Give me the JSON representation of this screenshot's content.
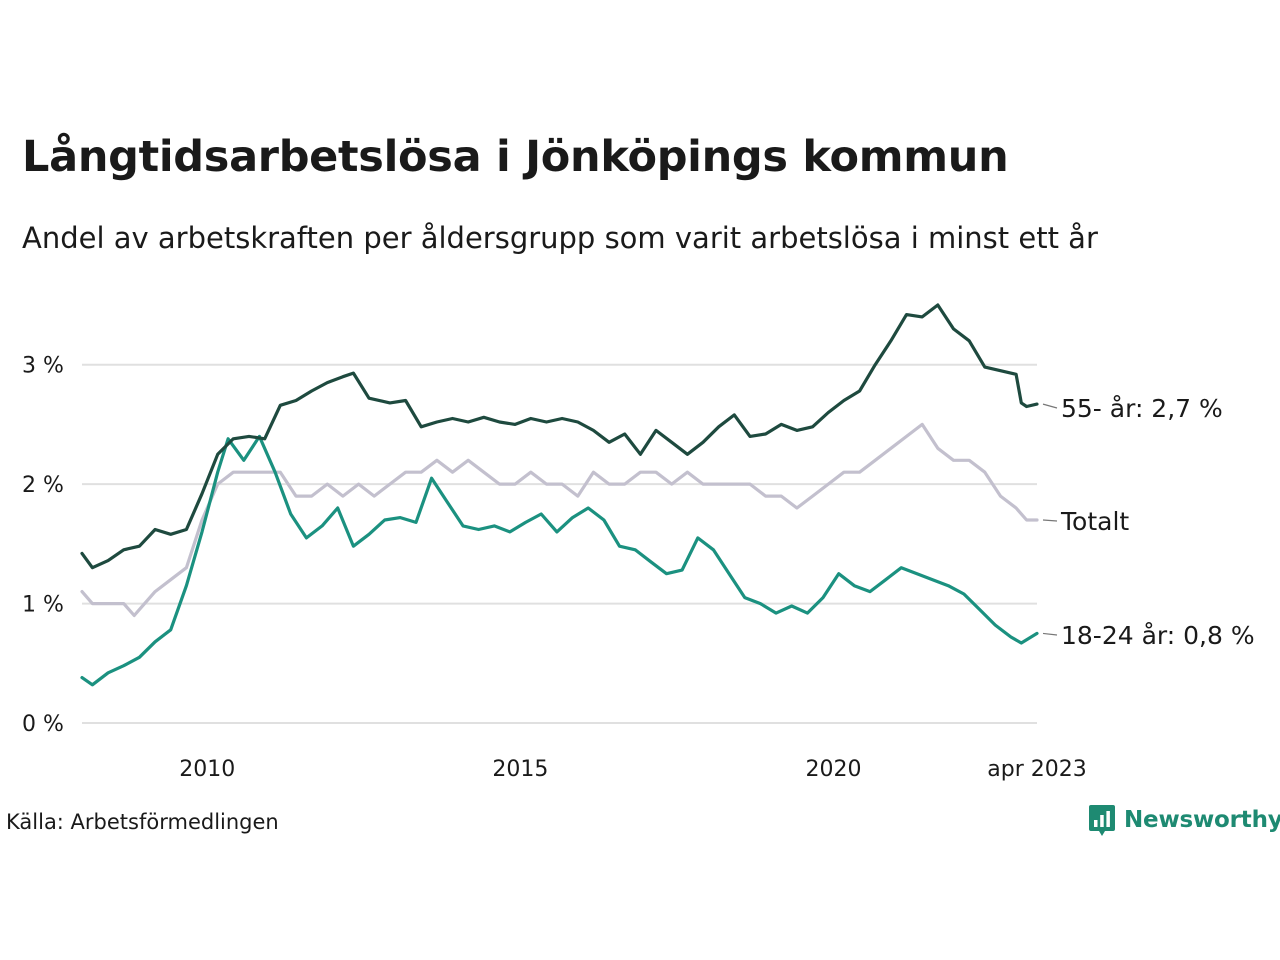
{
  "title": "Långtidsarbetslösa i Jönköpings kommun",
  "subtitle": "Andel av arbetskraften per åldersgrupp som varit arbetslösa i minst ett år",
  "source": "Källa: Arbetsförmedlingen",
  "brand": "Newsworthy",
  "colors": {
    "series_55": "#1e4a3f",
    "series_totalt": "#c3c0ce",
    "series_18_24": "#1b9180",
    "grid": "#e0e0e0",
    "brand": "#1e8a72"
  },
  "chart_data": {
    "type": "line",
    "x_start": "2008-01",
    "x_end": "2023-04",
    "y_unit": "%",
    "ylim": [
      0,
      3.5
    ],
    "grid": true,
    "x_ticks": [
      {
        "date": "2010-01",
        "label": "2010"
      },
      {
        "date": "2015-01",
        "label": "2015"
      },
      {
        "date": "2020-01",
        "label": "2020"
      },
      {
        "date": "2023-04",
        "label": "apr 2023"
      }
    ],
    "y_ticks": [
      {
        "value": 0,
        "label": "0 %"
      },
      {
        "value": 1,
        "label": "1 %"
      },
      {
        "value": 2,
        "label": "2 %"
      },
      {
        "value": 3,
        "label": "3 %"
      }
    ],
    "series": [
      {
        "key": "55",
        "end_label": "55- år: 2,7 %",
        "points": [
          [
            "2008-01",
            1.42
          ],
          [
            "2008-03",
            1.3
          ],
          [
            "2008-06",
            1.36
          ],
          [
            "2008-09",
            1.45
          ],
          [
            "2008-12",
            1.48
          ],
          [
            "2009-03",
            1.62
          ],
          [
            "2009-06",
            1.58
          ],
          [
            "2009-09",
            1.62
          ],
          [
            "2009-12",
            1.92
          ],
          [
            "2010-03",
            2.25
          ],
          [
            "2010-06",
            2.38
          ],
          [
            "2010-09",
            2.4
          ],
          [
            "2010-12",
            2.38
          ],
          [
            "2011-03",
            2.66
          ],
          [
            "2011-06",
            2.7
          ],
          [
            "2011-09",
            2.78
          ],
          [
            "2011-12",
            2.85
          ],
          [
            "2012-03",
            2.9
          ],
          [
            "2012-05",
            2.93
          ],
          [
            "2012-08",
            2.72
          ],
          [
            "2012-12",
            2.68
          ],
          [
            "2013-03",
            2.7
          ],
          [
            "2013-06",
            2.48
          ],
          [
            "2013-09",
            2.52
          ],
          [
            "2013-12",
            2.55
          ],
          [
            "2014-03",
            2.52
          ],
          [
            "2014-06",
            2.56
          ],
          [
            "2014-09",
            2.52
          ],
          [
            "2014-12",
            2.5
          ],
          [
            "2015-03",
            2.55
          ],
          [
            "2015-06",
            2.52
          ],
          [
            "2015-09",
            2.55
          ],
          [
            "2015-12",
            2.52
          ],
          [
            "2016-03",
            2.45
          ],
          [
            "2016-06",
            2.35
          ],
          [
            "2016-09",
            2.42
          ],
          [
            "2016-12",
            2.25
          ],
          [
            "2017-03",
            2.45
          ],
          [
            "2017-06",
            2.35
          ],
          [
            "2017-09",
            2.25
          ],
          [
            "2017-12",
            2.35
          ],
          [
            "2018-03",
            2.48
          ],
          [
            "2018-06",
            2.58
          ],
          [
            "2018-09",
            2.4
          ],
          [
            "2018-12",
            2.42
          ],
          [
            "2019-03",
            2.5
          ],
          [
            "2019-06",
            2.45
          ],
          [
            "2019-09",
            2.48
          ],
          [
            "2019-12",
            2.6
          ],
          [
            "2020-03",
            2.7
          ],
          [
            "2020-06",
            2.78
          ],
          [
            "2020-09",
            3.0
          ],
          [
            "2020-12",
            3.2
          ],
          [
            "2021-03",
            3.42
          ],
          [
            "2021-06",
            3.4
          ],
          [
            "2021-09",
            3.5
          ],
          [
            "2021-12",
            3.3
          ],
          [
            "2022-03",
            3.2
          ],
          [
            "2022-06",
            2.98
          ],
          [
            "2022-09",
            2.95
          ],
          [
            "2022-12",
            2.92
          ],
          [
            "2023-01",
            2.68
          ],
          [
            "2023-02",
            2.65
          ],
          [
            "2023-04",
            2.67
          ]
        ]
      },
      {
        "key": "totalt",
        "end_label": "Totalt",
        "points": [
          [
            "2008-01",
            1.1
          ],
          [
            "2008-03",
            1.0
          ],
          [
            "2008-06",
            1.0
          ],
          [
            "2008-09",
            1.0
          ],
          [
            "2008-11",
            0.9
          ],
          [
            "2009-01",
            1.0
          ],
          [
            "2009-03",
            1.1
          ],
          [
            "2009-06",
            1.2
          ],
          [
            "2009-09",
            1.3
          ],
          [
            "2009-12",
            1.7
          ],
          [
            "2010-03",
            2.0
          ],
          [
            "2010-06",
            2.1
          ],
          [
            "2010-09",
            2.1
          ],
          [
            "2010-12",
            2.1
          ],
          [
            "2011-03",
            2.1
          ],
          [
            "2011-06",
            1.9
          ],
          [
            "2011-09",
            1.9
          ],
          [
            "2011-12",
            2.0
          ],
          [
            "2012-03",
            1.9
          ],
          [
            "2012-06",
            2.0
          ],
          [
            "2012-09",
            1.9
          ],
          [
            "2012-12",
            2.0
          ],
          [
            "2013-03",
            2.1
          ],
          [
            "2013-06",
            2.1
          ],
          [
            "2013-09",
            2.2
          ],
          [
            "2013-12",
            2.1
          ],
          [
            "2014-03",
            2.2
          ],
          [
            "2014-06",
            2.1
          ],
          [
            "2014-09",
            2.0
          ],
          [
            "2014-12",
            2.0
          ],
          [
            "2015-03",
            2.1
          ],
          [
            "2015-06",
            2.0
          ],
          [
            "2015-09",
            2.0
          ],
          [
            "2015-12",
            1.9
          ],
          [
            "2016-03",
            2.1
          ],
          [
            "2016-06",
            2.0
          ],
          [
            "2016-09",
            2.0
          ],
          [
            "2016-12",
            2.1
          ],
          [
            "2017-03",
            2.1
          ],
          [
            "2017-06",
            2.0
          ],
          [
            "2017-09",
            2.1
          ],
          [
            "2017-12",
            2.0
          ],
          [
            "2018-03",
            2.0
          ],
          [
            "2018-06",
            2.0
          ],
          [
            "2018-09",
            2.0
          ],
          [
            "2018-12",
            1.9
          ],
          [
            "2019-03",
            1.9
          ],
          [
            "2019-06",
            1.8
          ],
          [
            "2019-09",
            1.9
          ],
          [
            "2019-12",
            2.0
          ],
          [
            "2020-03",
            2.1
          ],
          [
            "2020-06",
            2.1
          ],
          [
            "2020-09",
            2.2
          ],
          [
            "2020-12",
            2.3
          ],
          [
            "2021-03",
            2.4
          ],
          [
            "2021-06",
            2.5
          ],
          [
            "2021-09",
            2.3
          ],
          [
            "2021-12",
            2.2
          ],
          [
            "2022-03",
            2.2
          ],
          [
            "2022-06",
            2.1
          ],
          [
            "2022-09",
            1.9
          ],
          [
            "2022-12",
            1.8
          ],
          [
            "2023-02",
            1.7
          ],
          [
            "2023-04",
            1.7
          ]
        ]
      },
      {
        "key": "18_24",
        "end_label": "18-24 år: 0,8 %",
        "points": [
          [
            "2008-01",
            0.38
          ],
          [
            "2008-03",
            0.32
          ],
          [
            "2008-06",
            0.42
          ],
          [
            "2008-09",
            0.48
          ],
          [
            "2008-12",
            0.55
          ],
          [
            "2009-03",
            0.68
          ],
          [
            "2009-06",
            0.78
          ],
          [
            "2009-09",
            1.15
          ],
          [
            "2009-12",
            1.6
          ],
          [
            "2010-03",
            2.1
          ],
          [
            "2010-05",
            2.38
          ],
          [
            "2010-08",
            2.2
          ],
          [
            "2010-11",
            2.4
          ],
          [
            "2011-02",
            2.1
          ],
          [
            "2011-05",
            1.75
          ],
          [
            "2011-08",
            1.55
          ],
          [
            "2011-11",
            1.65
          ],
          [
            "2012-02",
            1.8
          ],
          [
            "2012-05",
            1.48
          ],
          [
            "2012-08",
            1.58
          ],
          [
            "2012-11",
            1.7
          ],
          [
            "2013-02",
            1.72
          ],
          [
            "2013-05",
            1.68
          ],
          [
            "2013-08",
            2.05
          ],
          [
            "2013-11",
            1.85
          ],
          [
            "2014-02",
            1.65
          ],
          [
            "2014-05",
            1.62
          ],
          [
            "2014-08",
            1.65
          ],
          [
            "2014-11",
            1.6
          ],
          [
            "2015-02",
            1.68
          ],
          [
            "2015-05",
            1.75
          ],
          [
            "2015-08",
            1.6
          ],
          [
            "2015-11",
            1.72
          ],
          [
            "2016-02",
            1.8
          ],
          [
            "2016-05",
            1.7
          ],
          [
            "2016-08",
            1.48
          ],
          [
            "2016-11",
            1.45
          ],
          [
            "2017-02",
            1.35
          ],
          [
            "2017-05",
            1.25
          ],
          [
            "2017-08",
            1.28
          ],
          [
            "2017-11",
            1.55
          ],
          [
            "2018-02",
            1.45
          ],
          [
            "2018-05",
            1.25
          ],
          [
            "2018-08",
            1.05
          ],
          [
            "2018-11",
            1.0
          ],
          [
            "2019-02",
            0.92
          ],
          [
            "2019-05",
            0.98
          ],
          [
            "2019-08",
            0.92
          ],
          [
            "2019-11",
            1.05
          ],
          [
            "2020-02",
            1.25
          ],
          [
            "2020-05",
            1.15
          ],
          [
            "2020-08",
            1.1
          ],
          [
            "2020-11",
            1.2
          ],
          [
            "2021-02",
            1.3
          ],
          [
            "2021-05",
            1.25
          ],
          [
            "2021-08",
            1.2
          ],
          [
            "2021-11",
            1.15
          ],
          [
            "2022-02",
            1.08
          ],
          [
            "2022-05",
            0.95
          ],
          [
            "2022-08",
            0.82
          ],
          [
            "2022-11",
            0.72
          ],
          [
            "2023-01",
            0.67
          ],
          [
            "2023-04",
            0.75
          ]
        ]
      }
    ]
  }
}
